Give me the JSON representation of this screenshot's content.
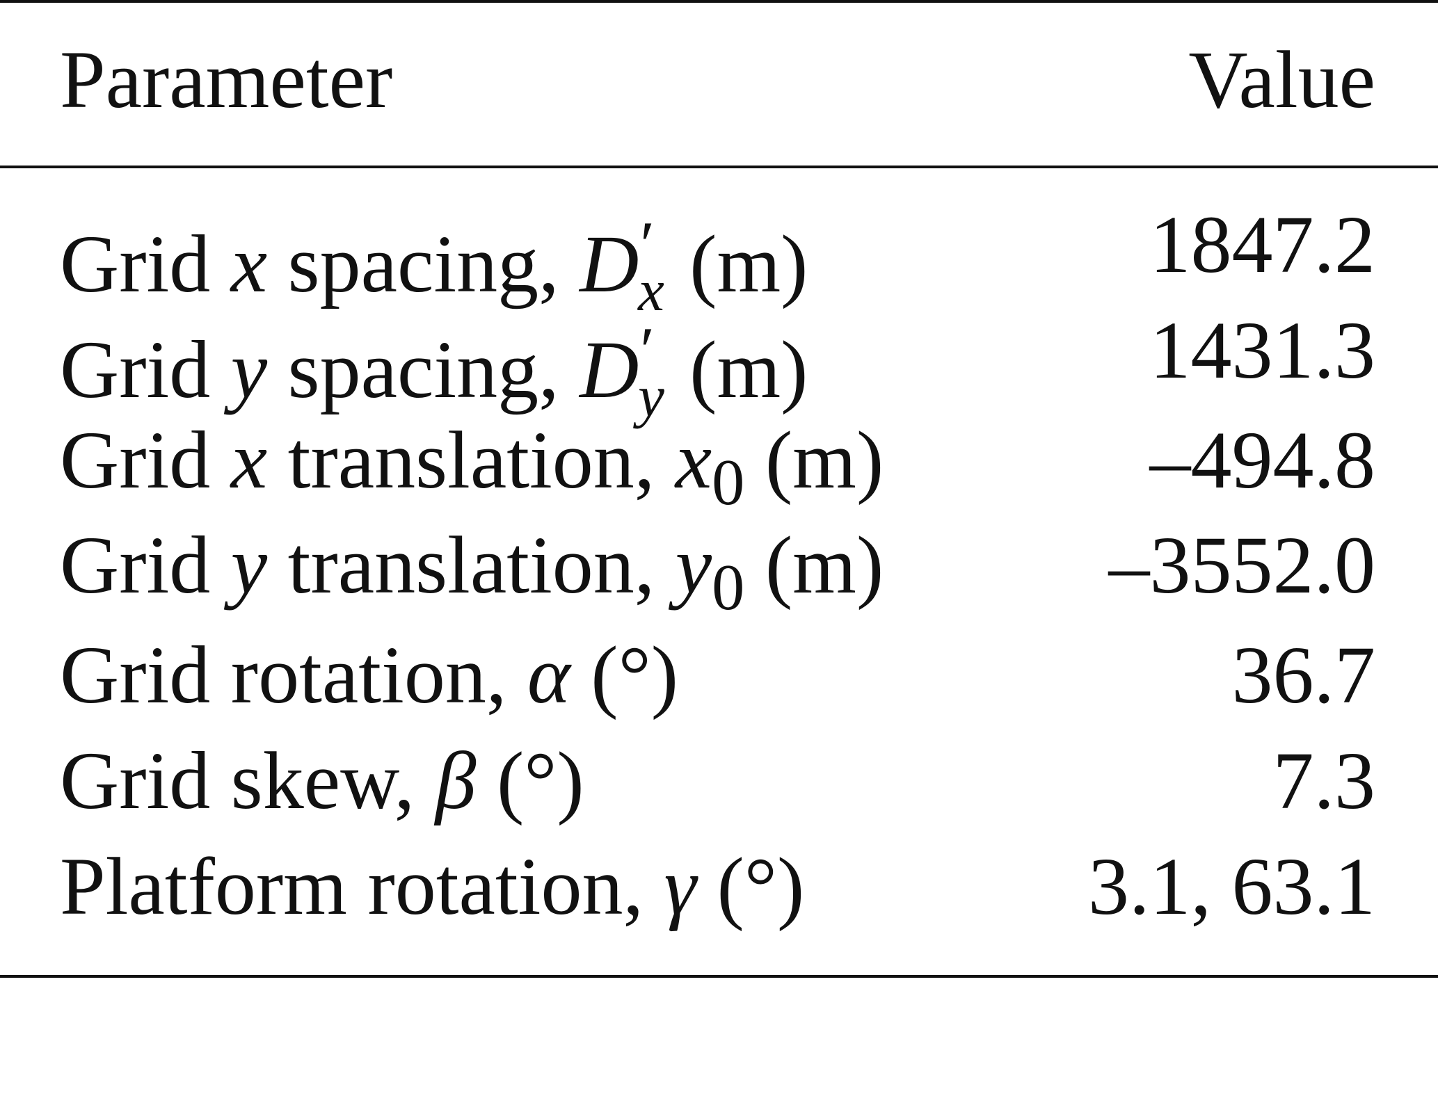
{
  "table": {
    "header": [
      "Parameter",
      "Value"
    ],
    "rows": [
      [
        [
          "Grid ",
          "x",
          " spacing, ",
          "D",
          "′",
          "x",
          " (m)"
        ],
        "1847.2"
      ],
      [
        [
          "Grid ",
          "y",
          " spacing, ",
          "D",
          "′",
          "y",
          " (m)"
        ],
        "1431.3"
      ],
      [
        [
          "Grid ",
          "x",
          " translation, ",
          "x",
          "0",
          " (m)"
        ],
        "–494.8"
      ],
      [
        [
          "Grid ",
          "y",
          " translation, ",
          "y",
          "0",
          " (m)"
        ],
        "–3552.0"
      ],
      [
        [
          "Grid rotation, ",
          "α",
          " (°)"
        ],
        "36.7"
      ],
      [
        [
          "Grid skew, ",
          "β",
          " (°)"
        ],
        "7.3"
      ],
      [
        [
          "Platform rotation, ",
          "γ",
          " (°)"
        ],
        "3.1, 63.1"
      ]
    ]
  }
}
